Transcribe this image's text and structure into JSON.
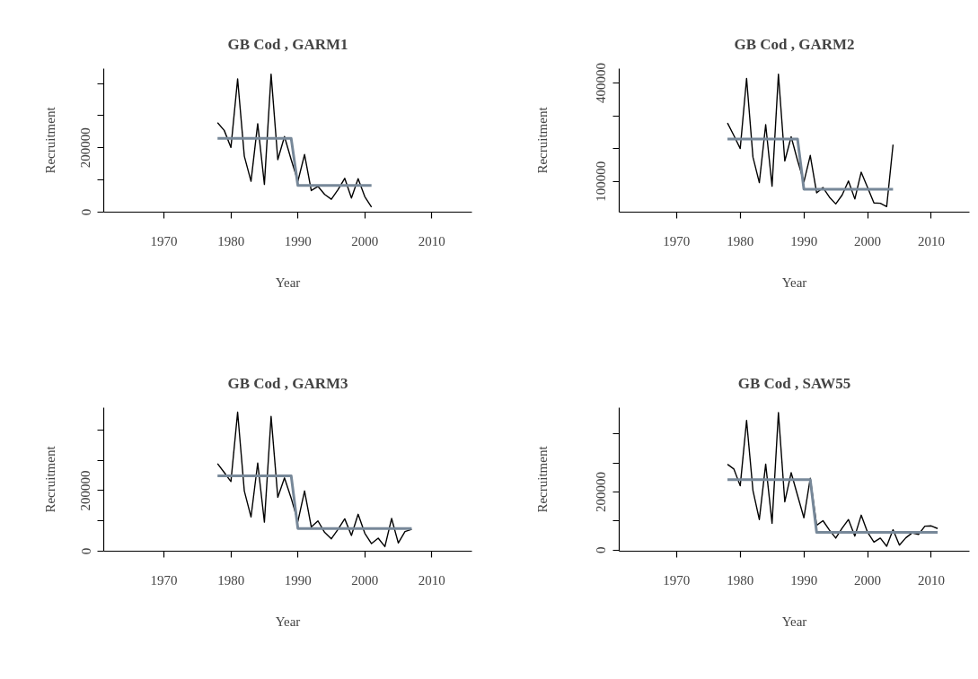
{
  "chart_data": [
    {
      "type": "line",
      "title": "GB Cod , GARM1",
      "xlabel": "Year",
      "ylabel": "Recruitment",
      "grid": false,
      "line_style": "solid",
      "marker": "none",
      "xlim": [
        1961,
        2016
      ],
      "ylim": [
        0,
        446000
      ],
      "xticks": [
        1970,
        1980,
        1990,
        2000,
        2010
      ],
      "yticks": [
        0,
        {
          "value": 100000,
          "label": null
        },
        200000,
        {
          "value": 300000,
          "label": null
        },
        {
          "value": 400000,
          "label": null
        }
      ],
      "x": [
        1978,
        1979,
        1980,
        1981,
        1982,
        1983,
        1984,
        1985,
        1986,
        1987,
        1988,
        1989,
        1990,
        1991,
        1992,
        1993,
        1994,
        1995,
        1996,
        1997,
        1998,
        1999,
        2000,
        2001
      ],
      "series": [
        {
          "color": "#000000",
          "values": [
            278000,
            254000,
            201000,
            414000,
            174000,
            96000,
            275000,
            86000,
            429000,
            163000,
            235000,
            163000,
            96000,
            179000,
            67000,
            80000,
            55000,
            40000,
            70000,
            105000,
            44000,
            104000,
            48000,
            16000
          ]
        },
        {
          "color": "#778899",
          "values": [
            229000,
            229000,
            229000,
            229000,
            229000,
            229000,
            229000,
            229000,
            229000,
            229000,
            229000,
            229000,
            83000,
            83000,
            83000,
            83000,
            83000,
            83000,
            83000,
            83000,
            83000,
            83000,
            83000,
            83000
          ]
        }
      ]
    },
    {
      "type": "line",
      "title": "GB Cod , GARM2",
      "xlabel": "Year",
      "ylabel": "Recruitment",
      "grid": false,
      "line_style": "solid",
      "marker": "none",
      "xlim": [
        1961,
        2016
      ],
      "ylim": [
        6000,
        444000
      ],
      "xticks": [
        1970,
        1980,
        1990,
        2000,
        2010
      ],
      "yticks": [
        100000,
        {
          "value": 200000,
          "label": null
        },
        {
          "value": 300000,
          "label": null
        },
        400000
      ],
      "x": [
        1978,
        1979,
        1980,
        1981,
        1982,
        1983,
        1984,
        1985,
        1986,
        1987,
        1988,
        1989,
        1990,
        1991,
        1992,
        1993,
        1994,
        1995,
        1996,
        1997,
        1998,
        1999,
        2000,
        2001,
        2002,
        2003,
        2004
      ],
      "series": [
        {
          "color": "#000000",
          "values": [
            278000,
            240000,
            200000,
            414000,
            174000,
            96000,
            273000,
            85000,
            427000,
            162000,
            236000,
            164000,
            98000,
            179000,
            65000,
            81000,
            52000,
            31000,
            58000,
            101000,
            46000,
            128000,
            81000,
            34000,
            33000,
            23000,
            212000
          ]
        },
        {
          "color": "#778899",
          "values": [
            229000,
            229000,
            229000,
            229000,
            229000,
            229000,
            229000,
            229000,
            229000,
            229000,
            229000,
            229000,
            76000,
            76000,
            76000,
            76000,
            76000,
            76000,
            76000,
            76000,
            76000,
            76000,
            76000,
            76000,
            76000,
            76000,
            76000
          ]
        }
      ]
    },
    {
      "type": "line",
      "title": "GB Cod , GARM3",
      "xlabel": "Year",
      "ylabel": "Recruitment",
      "grid": false,
      "line_style": "solid",
      "marker": "none",
      "xlim": [
        1961,
        2016
      ],
      "ylim": [
        0,
        474000
      ],
      "xticks": [
        1970,
        1980,
        1990,
        2000,
        2010
      ],
      "yticks": [
        0,
        {
          "value": 100000,
          "label": null
        },
        200000,
        {
          "value": 300000,
          "label": null
        },
        {
          "value": 400000,
          "label": null
        }
      ],
      "x": [
        1978,
        1979,
        1980,
        1981,
        1982,
        1983,
        1984,
        1985,
        1986,
        1987,
        1988,
        1989,
        1990,
        1991,
        1992,
        1993,
        1994,
        1995,
        1996,
        1997,
        1998,
        1999,
        2000,
        2001,
        2002,
        2003,
        2004,
        2005,
        2006,
        2007
      ],
      "series": [
        {
          "color": "#000000",
          "values": [
            289000,
            260000,
            230000,
            459000,
            199000,
            113000,
            291000,
            96000,
            445000,
            178000,
            242000,
            175000,
            98000,
            199000,
            80000,
            100000,
            62000,
            41000,
            72000,
            107000,
            52000,
            122000,
            59000,
            25000,
            43000,
            15000,
            108000,
            27000,
            65000,
            72000
          ]
        },
        {
          "color": "#778899",
          "values": [
            249000,
            249000,
            249000,
            249000,
            249000,
            249000,
            249000,
            249000,
            249000,
            249000,
            249000,
            249000,
            75000,
            75000,
            75000,
            75000,
            75000,
            75000,
            75000,
            75000,
            75000,
            75000,
            75000,
            75000,
            75000,
            75000,
            75000,
            75000,
            75000,
            75000
          ]
        }
      ]
    },
    {
      "type": "line",
      "title": "GB Cod , SAW55",
      "xlabel": "Year",
      "ylabel": "Recruitment",
      "grid": false,
      "line_style": "solid",
      "marker": "none",
      "xlim": [
        1961,
        2016
      ],
      "ylim": [
        -4000,
        490000
      ],
      "xticks": [
        1970,
        1980,
        1990,
        2000,
        2010
      ],
      "yticks": [
        0,
        {
          "value": 100000,
          "label": null
        },
        200000,
        {
          "value": 300000,
          "label": null
        },
        {
          "value": 400000,
          "label": null
        }
      ],
      "x": [
        1978,
        1979,
        1980,
        1981,
        1982,
        1983,
        1984,
        1985,
        1986,
        1987,
        1988,
        1989,
        1990,
        1991,
        1992,
        1993,
        1994,
        1995,
        1996,
        1997,
        1998,
        1999,
        2000,
        2001,
        2002,
        2003,
        2004,
        2005,
        2006,
        2007,
        2008,
        2009,
        2010,
        2011
      ],
      "series": [
        {
          "color": "#000000",
          "values": [
            295000,
            279000,
            221000,
            446000,
            205000,
            105000,
            296000,
            92000,
            473000,
            166000,
            266000,
            188000,
            111000,
            247000,
            85000,
            101000,
            69000,
            41000,
            75000,
            105000,
            48000,
            120000,
            61000,
            27000,
            41000,
            13000,
            70000,
            17000,
            42000,
            59000,
            54000,
            82000,
            83000,
            74000
          ]
        },
        {
          "color": "#778899",
          "values": [
            242000,
            242000,
            242000,
            242000,
            242000,
            242000,
            242000,
            242000,
            242000,
            242000,
            242000,
            242000,
            242000,
            242000,
            61000,
            61000,
            61000,
            61000,
            61000,
            61000,
            61000,
            61000,
            61000,
            61000,
            61000,
            61000,
            61000,
            61000,
            61000,
            61000,
            61000,
            61000,
            61000,
            61000
          ]
        }
      ]
    }
  ]
}
